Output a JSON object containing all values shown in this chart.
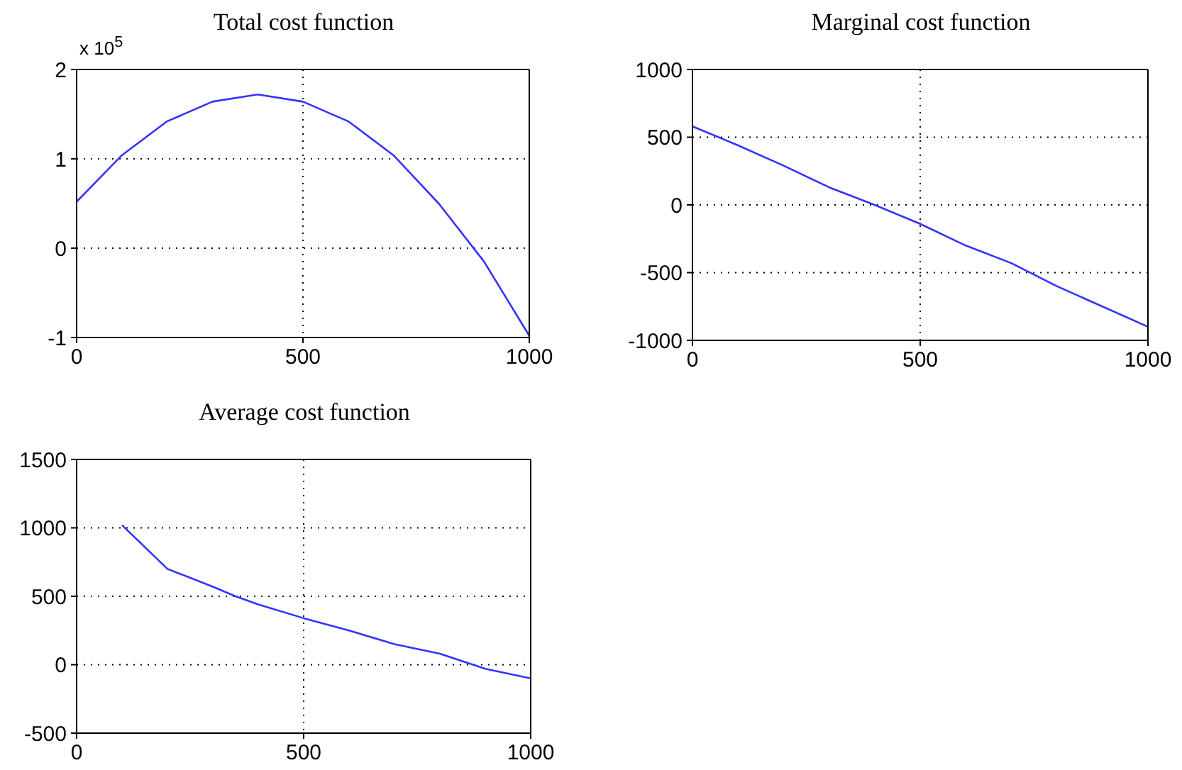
{
  "chart_data": [
    {
      "type": "line",
      "title": "Total cost function",
      "annotations": [
        "x 10$^{5}$"
      ],
      "x": [
        0,
        100,
        200,
        300,
        400,
        500,
        600,
        700,
        800,
        900,
        1000
      ],
      "series": [
        {
          "color": "#3333ff",
          "values": [
            0.52,
            1.04,
            1.42,
            1.64,
            1.72,
            1.64,
            1.42,
            1.04,
            0.5,
            -0.15,
            -0.98
          ]
        }
      ],
      "xlim": [
        0,
        1000
      ],
      "xticks": [
        0,
        500,
        1000
      ],
      "ylim": [
        -1,
        2
      ],
      "yticks": [
        -1,
        0,
        1,
        2
      ],
      "grid": true,
      "line_style": "solid",
      "legend": false
    },
    {
      "type": "line",
      "title": "Marginal cost function",
      "x": [
        0,
        100,
        200,
        300,
        400,
        500,
        600,
        700,
        800,
        900,
        1000
      ],
      "series": [
        {
          "color": "#3333ff",
          "values": [
            580,
            440,
            290,
            130,
            0,
            -140,
            -300,
            -430,
            -600,
            -750,
            -900
          ]
        }
      ],
      "xlim": [
        0,
        1000
      ],
      "xticks": [
        0,
        500,
        1000
      ],
      "ylim": [
        -1000,
        1000
      ],
      "yticks": [
        -1000,
        -500,
        0,
        500,
        1000
      ],
      "grid": true,
      "line_style": "solid",
      "legend": false
    },
    {
      "type": "line",
      "title": "Average cost function",
      "x": [
        100,
        200,
        300,
        350,
        400,
        500,
        600,
        700,
        800,
        900,
        1000
      ],
      "series": [
        {
          "color": "#3333ff",
          "values": [
            1020,
            700,
            570,
            500,
            440,
            340,
            250,
            150,
            80,
            -30,
            -100
          ]
        }
      ],
      "xlim": [
        0,
        1000
      ],
      "xticks": [
        0,
        500,
        1000
      ],
      "ylim": [
        -500,
        1500
      ],
      "yticks": [
        -500,
        0,
        500,
        1000,
        1500
      ],
      "grid": true,
      "line_style": "solid",
      "legend": false
    }
  ]
}
